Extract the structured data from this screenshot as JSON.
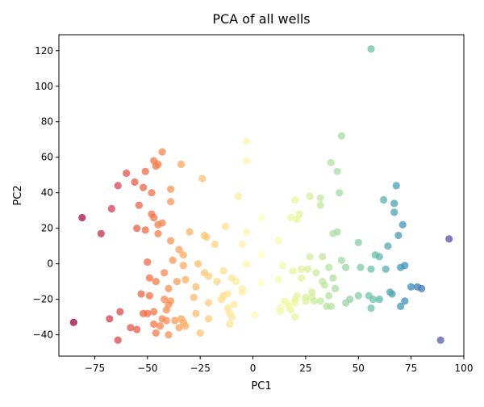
{
  "chart_data": {
    "type": "scatter",
    "title": "PCA of all wells",
    "xlabel": "PC1",
    "ylabel": "PC2",
    "xlim": [
      -92,
      100
    ],
    "ylim": [
      -52,
      129
    ],
    "xticks": [
      -75,
      -50,
      -25,
      0,
      25,
      50,
      75,
      100
    ],
    "xtick_labels": [
      "−75",
      "−50",
      "−25",
      "0",
      "25",
      "50",
      "75",
      "100"
    ],
    "yticks": [
      -40,
      -20,
      0,
      20,
      40,
      60,
      80,
      100,
      120
    ],
    "ytick_labels": [
      "−40",
      "−20",
      "0",
      "20",
      "40",
      "60",
      "80",
      "100",
      "120"
    ],
    "grid": false,
    "legend": "none",
    "colormap": "Spectral",
    "color_by": "x",
    "color_range": [
      -85,
      93
    ],
    "marker_alpha": 0.75,
    "points": [
      [
        -85,
        -33
      ],
      [
        -81,
        26
      ],
      [
        -72,
        17
      ],
      [
        -68,
        -31
      ],
      [
        -67,
        31
      ],
      [
        -64,
        44
      ],
      [
        -64,
        -43
      ],
      [
        -63,
        -27
      ],
      [
        -60,
        51
      ],
      [
        -58,
        -36
      ],
      [
        -56,
        46
      ],
      [
        -55,
        -37
      ],
      [
        -55,
        20
      ],
      [
        -54,
        33
      ],
      [
        -53,
        -17
      ],
      [
        -52,
        43
      ],
      [
        -52,
        -28
      ],
      [
        -51,
        52
      ],
      [
        -51,
        19
      ],
      [
        -50,
        -28
      ],
      [
        -50,
        1
      ],
      [
        -49,
        -8
      ],
      [
        -49,
        -18
      ],
      [
        -48,
        40
      ],
      [
        -48,
        28
      ],
      [
        -47,
        58
      ],
      [
        -47,
        26
      ],
      [
        -47,
        -27
      ],
      [
        -47,
        -34
      ],
      [
        -46,
        55
      ],
      [
        -46,
        -10
      ],
      [
        -46,
        -39
      ],
      [
        -45,
        56
      ],
      [
        -45,
        17
      ],
      [
        -45,
        22
      ],
      [
        -44,
        -35
      ],
      [
        -43,
        63
      ],
      [
        -43,
        23
      ],
      [
        -43,
        -31
      ],
      [
        -42,
        -5
      ],
      [
        -42,
        -20
      ],
      [
        -41,
        -26
      ],
      [
        -41,
        -32
      ],
      [
        -40,
        -14
      ],
      [
        -40,
        -23
      ],
      [
        -40,
        -40
      ],
      [
        -39,
        -21
      ],
      [
        -39,
        42
      ],
      [
        -39,
        35
      ],
      [
        -39,
        13
      ],
      [
        -38,
        2
      ],
      [
        -37,
        -32
      ],
      [
        -36,
        -10
      ],
      [
        -35,
        8
      ],
      [
        -35,
        -36
      ],
      [
        -34,
        56
      ],
      [
        -34,
        -31
      ],
      [
        -33,
        -33
      ],
      [
        -33,
        5
      ],
      [
        -33,
        -1
      ],
      [
        -32,
        -9
      ],
      [
        -32,
        -35
      ],
      [
        -30,
        18
      ],
      [
        -28,
        -19
      ],
      [
        -27,
        -28
      ],
      [
        -27,
        -13
      ],
      [
        -26,
        0
      ],
      [
        -25,
        -39
      ],
      [
        -24,
        48
      ],
      [
        -23,
        16
      ],
      [
        -23,
        -5
      ],
      [
        -22,
        15
      ],
      [
        -21,
        -22
      ],
      [
        -21,
        -31
      ],
      [
        -21,
        -7
      ],
      [
        -18,
        11
      ],
      [
        -17,
        -10
      ],
      [
        -15,
        -20
      ],
      [
        -14,
        -4
      ],
      [
        -14,
        -18
      ],
      [
        -13,
        21
      ],
      [
        -12,
        -25
      ],
      [
        -12,
        -17
      ],
      [
        -11,
        -28
      ],
      [
        -11,
        -34
      ],
      [
        -10,
        -8
      ],
      [
        -10,
        -30
      ],
      [
        -9,
        -23
      ],
      [
        -8,
        -10
      ],
      [
        -7,
        38
      ],
      [
        -5,
        -14
      ],
      [
        -5,
        -16
      ],
      [
        -5,
        11
      ],
      [
        -3,
        69
      ],
      [
        -3,
        58
      ],
      [
        -3,
        18
      ],
      [
        -3,
        0
      ],
      [
        1,
        -29
      ],
      [
        4,
        26
      ],
      [
        4,
        5
      ],
      [
        4,
        -11
      ],
      [
        12,
        -9
      ],
      [
        12,
        13
      ],
      [
        13,
        -27
      ],
      [
        13,
        -25
      ],
      [
        14,
        -1
      ],
      [
        15,
        -21
      ],
      [
        16,
        -22
      ],
      [
        17,
        -24
      ],
      [
        18,
        -26
      ],
      [
        18,
        26
      ],
      [
        19,
        -4
      ],
      [
        20,
        -30
      ],
      [
        20,
        36
      ],
      [
        20,
        -20
      ],
      [
        20,
        -22
      ],
      [
        21,
        25
      ],
      [
        21,
        -18
      ],
      [
        22,
        28
      ],
      [
        23,
        -8
      ],
      [
        23,
        -3
      ],
      [
        25,
        -21
      ],
      [
        25,
        -19
      ],
      [
        26,
        -3
      ],
      [
        27,
        4
      ],
      [
        27,
        38
      ],
      [
        28,
        -16
      ],
      [
        28,
        -19
      ],
      [
        29,
        -21
      ],
      [
        30,
        -5
      ],
      [
        32,
        37
      ],
      [
        32,
        33
      ],
      [
        32,
        -21
      ],
      [
        33,
        -10
      ],
      [
        33,
        4
      ],
      [
        34,
        -12
      ],
      [
        35,
        -24
      ],
      [
        36,
        -2
      ],
      [
        36,
        -18
      ],
      [
        37,
        -24
      ],
      [
        37,
        57
      ],
      [
        38,
        17
      ],
      [
        38,
        -8
      ],
      [
        39,
        -14
      ],
      [
        40,
        52
      ],
      [
        40,
        18
      ],
      [
        41,
        40
      ],
      [
        42,
        72
      ],
      [
        42,
        2
      ],
      [
        44,
        -22
      ],
      [
        44,
        -2
      ],
      [
        46,
        -20
      ],
      [
        50,
        12
      ],
      [
        50,
        -18
      ],
      [
        51,
        -2
      ],
      [
        55,
        -18
      ],
      [
        56,
        -3
      ],
      [
        56,
        121
      ],
      [
        56,
        -25
      ],
      [
        57,
        -20
      ],
      [
        58,
        5
      ],
      [
        60,
        4
      ],
      [
        60,
        -20
      ],
      [
        62,
        36
      ],
      [
        63,
        -3
      ],
      [
        64,
        10
      ],
      [
        65,
        -16
      ],
      [
        66,
        -17
      ],
      [
        67,
        34
      ],
      [
        67,
        29
      ],
      [
        68,
        44
      ],
      [
        69,
        16
      ],
      [
        70,
        -2
      ],
      [
        70,
        -24
      ],
      [
        71,
        22
      ],
      [
        72,
        -21
      ],
      [
        72,
        -1
      ],
      [
        75,
        -13
      ],
      [
        78,
        -13
      ],
      [
        80,
        -14
      ],
      [
        89,
        -43
      ],
      [
        93,
        14
      ]
    ]
  }
}
